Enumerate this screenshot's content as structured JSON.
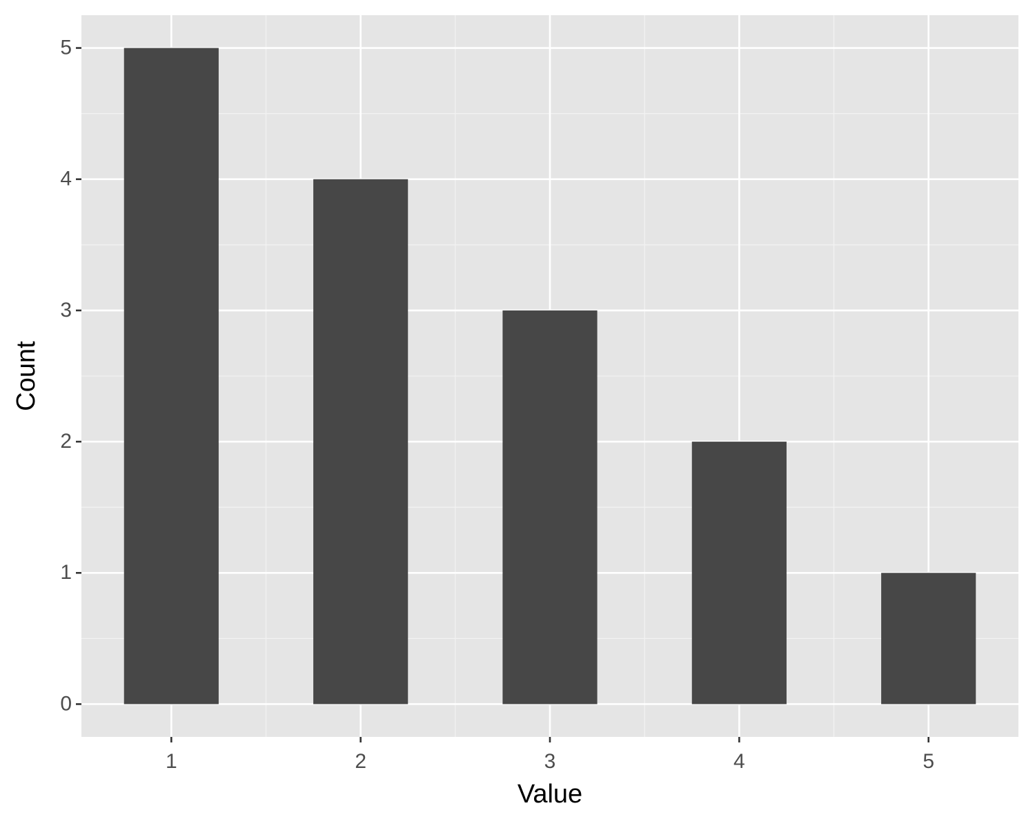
{
  "chart_data": {
    "type": "bar",
    "x_label": "Value",
    "y_label": "Count",
    "x": [
      1,
      2,
      3,
      4,
      5
    ],
    "values": [
      5,
      4,
      3,
      2,
      1
    ],
    "color": "#474747",
    "xlim": [
      0.525,
      5.475
    ],
    "xticks": [
      1,
      2,
      3,
      4,
      5
    ],
    "ylim": [
      -0.25,
      5.25
    ],
    "yticks": [
      0,
      1,
      2,
      3,
      4,
      5
    ],
    "grid": true
  }
}
